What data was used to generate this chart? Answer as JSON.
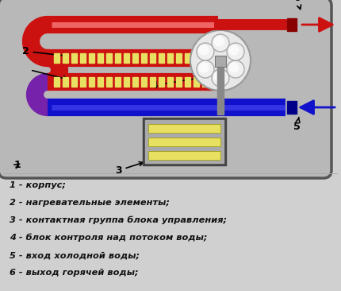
{
  "bg_color": "#d0d0d0",
  "box_bg": "#c0c0c0",
  "red": "#cc1111",
  "blue": "#1111cc",
  "yellow": "#e8e060",
  "labels": [
    "1 - корпус;",
    "2 - нагревательные элементы;",
    "3 - контактная группа блока управления;",
    "4 - блок контроля над потоком воды;",
    "5 - вход холодной воды;",
    "6 - выход горячей воды;"
  ]
}
